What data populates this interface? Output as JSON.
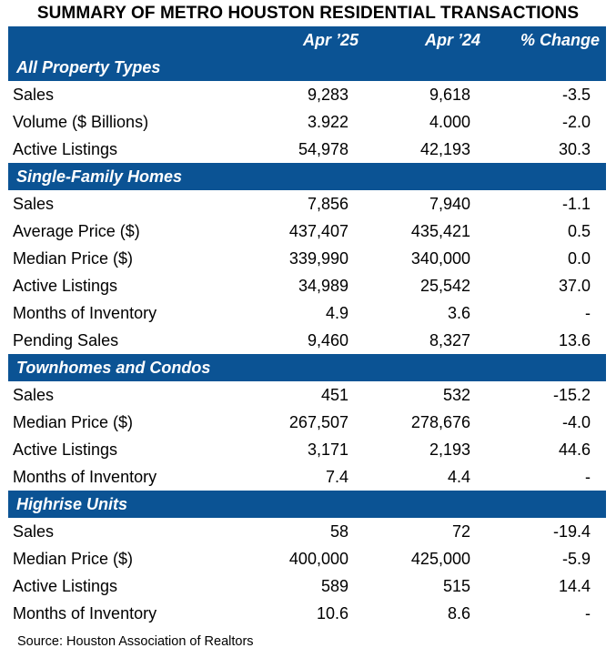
{
  "title": "SUMMARY OF METRO HOUSTON RESIDENTIAL TRANSACTIONS",
  "header": {
    "col_current": "Apr ’25",
    "col_prior": "Apr ’24",
    "col_change": "% Change"
  },
  "sections": [
    {
      "name": "All Property Types",
      "rows": [
        {
          "label": "Sales",
          "current": "9,283",
          "prior": "9,618",
          "change": "-3.5"
        },
        {
          "label": "Volume ($ Billions)",
          "current": "3.922",
          "prior": "4.000",
          "change": "-2.0"
        },
        {
          "label": "Active Listings",
          "current": "54,978",
          "prior": "42,193",
          "change": "30.3"
        }
      ]
    },
    {
      "name": "Single-Family Homes",
      "rows": [
        {
          "label": "Sales",
          "current": "7,856",
          "prior": "7,940",
          "change": "-1.1"
        },
        {
          "label": "Average Price ($)",
          "current": "437,407",
          "prior": "435,421",
          "change": "0.5"
        },
        {
          "label": "Median Price ($)",
          "current": "339,990",
          "prior": "340,000",
          "change": "0.0"
        },
        {
          "label": "Active Listings",
          "current": "34,989",
          "prior": "25,542",
          "change": "37.0"
        },
        {
          "label": "Months of Inventory",
          "current": "4.9",
          "prior": "3.6",
          "change": "-"
        },
        {
          "label": "Pending Sales",
          "current": "9,460",
          "prior": "8,327",
          "change": "13.6"
        }
      ]
    },
    {
      "name": "Townhomes and Condos",
      "rows": [
        {
          "label": "Sales",
          "current": "451",
          "prior": "532",
          "change": "-15.2"
        },
        {
          "label": "Median Price ($)",
          "current": "267,507",
          "prior": "278,676",
          "change": "-4.0"
        },
        {
          "label": "Active Listings",
          "current": "3,171",
          "prior": "2,193",
          "change": "44.6"
        },
        {
          "label": "Months of Inventory",
          "current": "7.4",
          "prior": "4.4",
          "change": "-"
        }
      ]
    },
    {
      "name": "Highrise Units",
      "rows": [
        {
          "label": "Sales",
          "current": "58",
          "prior": "72",
          "change": "-19.4"
        },
        {
          "label": "Median Price ($)",
          "current": "400,000",
          "prior": "425,000",
          "change": "-5.9"
        },
        {
          "label": "Active Listings",
          "current": "589",
          "prior": "515",
          "change": "14.4"
        },
        {
          "label": "Months of Inventory",
          "current": "10.6",
          "prior": "8.6",
          "change": "-"
        }
      ]
    }
  ],
  "source": "Source: Houston Association of Realtors",
  "colors": {
    "header_bg": "#0b5394",
    "header_text": "#ffffff"
  }
}
